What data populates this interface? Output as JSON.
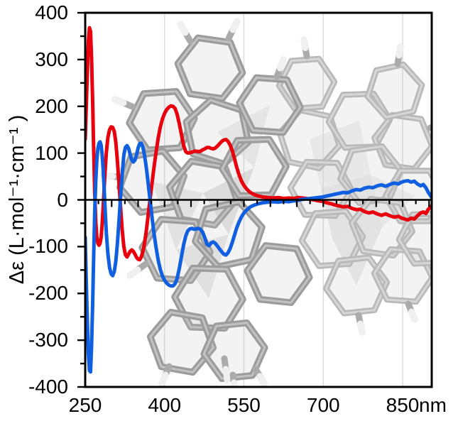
{
  "figure": {
    "description": "Circular dichroism (CD) spectra of two enantiomers with grayscale 3D stick-model molecule overlay",
    "colors": {
      "curve_red": "#e8000d",
      "curve_blue": "#0f5fe0",
      "grid": "#dcdcdc",
      "axis": "#000000",
      "molecule_dark": "#9c9c9c",
      "molecule_light": "#b9b9b9",
      "hydrogen_cap": "#f0f0f0"
    }
  },
  "chart_data": {
    "type": "line",
    "title": "",
    "ylabel": "Δε (L·mol⁻¹·cm⁻¹ )",
    "xlabel_unit": "nm",
    "xlim": [
      250,
      905
    ],
    "ylim": [
      -400,
      400
    ],
    "x_ticks": [
      250,
      400,
      550,
      700,
      850
    ],
    "x_minor_tick_step": 25,
    "y_ticks": [
      400,
      300,
      200,
      100,
      0,
      -100,
      -200,
      -300,
      -400
    ],
    "y_minor_tick_step": 50,
    "grid_vertical_at": [
      400,
      550,
      700,
      850
    ],
    "legend": "none",
    "annotations": [
      "Grayscale 3D stick model of a helicene-like polycyclic aromatic molecule drawn behind the curves inside the plot area"
    ],
    "series": [
      {
        "name": "enantiomer-red",
        "color": "#e8000d",
        "points": [
          [
            250,
            130
          ],
          [
            252,
            200
          ],
          [
            254,
            275
          ],
          [
            256,
            340
          ],
          [
            258,
            368
          ],
          [
            260,
            360
          ],
          [
            262,
            305
          ],
          [
            264,
            215
          ],
          [
            266,
            110
          ],
          [
            268,
            15
          ],
          [
            270,
            -48
          ],
          [
            272,
            -80
          ],
          [
            274,
            -93
          ],
          [
            276,
            -97
          ],
          [
            278,
            -93
          ],
          [
            280,
            -80
          ],
          [
            282,
            -54
          ],
          [
            284,
            -16
          ],
          [
            286,
            28
          ],
          [
            288,
            68
          ],
          [
            290,
            102
          ],
          [
            293,
            134
          ],
          [
            296,
            150
          ],
          [
            299,
            156
          ],
          [
            302,
            155
          ],
          [
            305,
            146
          ],
          [
            308,
            122
          ],
          [
            311,
            82
          ],
          [
            314,
            32
          ],
          [
            317,
            -18
          ],
          [
            320,
            -66
          ],
          [
            323,
            -100
          ],
          [
            326,
            -117
          ],
          [
            329,
            -122
          ],
          [
            332,
            -116
          ],
          [
            335,
            -110
          ],
          [
            338,
            -107
          ],
          [
            341,
            -110
          ],
          [
            344,
            -116
          ],
          [
            347,
            -123
          ],
          [
            350,
            -127
          ],
          [
            353,
            -128
          ],
          [
            356,
            -122
          ],
          [
            359,
            -111
          ],
          [
            362,
            -94
          ],
          [
            365,
            -70
          ],
          [
            368,
            -43
          ],
          [
            371,
            -14
          ],
          [
            374,
            14
          ],
          [
            377,
            42
          ],
          [
            380,
            70
          ],
          [
            384,
            102
          ],
          [
            388,
            132
          ],
          [
            392,
            156
          ],
          [
            396,
            173
          ],
          [
            400,
            185
          ],
          [
            404,
            193
          ],
          [
            408,
            198
          ],
          [
            412,
            201
          ],
          [
            416,
            200
          ],
          [
            420,
            195
          ],
          [
            424,
            182
          ],
          [
            428,
            162
          ],
          [
            432,
            139
          ],
          [
            436,
            116
          ],
          [
            440,
            103
          ],
          [
            444,
            100
          ],
          [
            448,
            101
          ],
          [
            452,
            102
          ],
          [
            456,
            104
          ],
          [
            460,
            104
          ],
          [
            464,
            103
          ],
          [
            468,
            104
          ],
          [
            472,
            107
          ],
          [
            476,
            109
          ],
          [
            480,
            112
          ],
          [
            484,
            112
          ],
          [
            488,
            110
          ],
          [
            492,
            109
          ],
          [
            496,
            111
          ],
          [
            500,
            115
          ],
          [
            504,
            120
          ],
          [
            508,
            125
          ],
          [
            512,
            128
          ],
          [
            516,
            129
          ],
          [
            520,
            125
          ],
          [
            524,
            117
          ],
          [
            528,
            105
          ],
          [
            532,
            89
          ],
          [
            536,
            71
          ],
          [
            540,
            56
          ],
          [
            545,
            41
          ],
          [
            550,
            31
          ],
          [
            556,
            22
          ],
          [
            562,
            16
          ],
          [
            570,
            11
          ],
          [
            578,
            8
          ],
          [
            586,
            6
          ],
          [
            595,
            5
          ],
          [
            605,
            4
          ],
          [
            615,
            5
          ],
          [
            625,
            3
          ],
          [
            635,
            4
          ],
          [
            645,
            3
          ],
          [
            652,
            5
          ],
          [
            660,
            4
          ],
          [
            668,
            3
          ],
          [
            676,
            1
          ],
          [
            683,
            0
          ],
          [
            690,
            -2
          ],
          [
            698,
            -3
          ],
          [
            706,
            -6
          ],
          [
            714,
            -8
          ],
          [
            722,
            -11
          ],
          [
            730,
            -13
          ],
          [
            738,
            -15
          ],
          [
            746,
            -14
          ],
          [
            754,
            -18
          ],
          [
            762,
            -21
          ],
          [
            770,
            -20
          ],
          [
            778,
            -25
          ],
          [
            786,
            -28
          ],
          [
            794,
            -26
          ],
          [
            802,
            -30
          ],
          [
            810,
            -33
          ],
          [
            818,
            -30
          ],
          [
            826,
            -34
          ],
          [
            834,
            -37
          ],
          [
            842,
            -35
          ],
          [
            848,
            -39
          ],
          [
            854,
            -41
          ],
          [
            860,
            -43
          ],
          [
            866,
            -39
          ],
          [
            872,
            -41
          ],
          [
            878,
            -34
          ],
          [
            884,
            -28
          ],
          [
            889,
            -26
          ],
          [
            894,
            -29
          ],
          [
            898,
            -21
          ],
          [
            902,
            -16
          ],
          [
            905,
            -12
          ]
        ]
      },
      {
        "name": "enantiomer-blue",
        "color": "#0f5fe0",
        "points": [
          [
            250,
            -80
          ],
          [
            252,
            -175
          ],
          [
            254,
            -262
          ],
          [
            256,
            -330
          ],
          [
            258,
            -365
          ],
          [
            260,
            -368
          ],
          [
            262,
            -315
          ],
          [
            264,
            -228
          ],
          [
            266,
            -122
          ],
          [
            268,
            -25
          ],
          [
            270,
            42
          ],
          [
            272,
            86
          ],
          [
            274,
            110
          ],
          [
            276,
            121
          ],
          [
            278,
            124
          ],
          [
            280,
            117
          ],
          [
            282,
            98
          ],
          [
            284,
            64
          ],
          [
            286,
            20
          ],
          [
            288,
            -28
          ],
          [
            290,
            -72
          ],
          [
            293,
            -116
          ],
          [
            296,
            -145
          ],
          [
            299,
            -158
          ],
          [
            302,
            -162
          ],
          [
            305,
            -153
          ],
          [
            308,
            -130
          ],
          [
            311,
            -92
          ],
          [
            314,
            -42
          ],
          [
            317,
            8
          ],
          [
            320,
            58
          ],
          [
            323,
            96
          ],
          [
            326,
            112
          ],
          [
            329,
            116
          ],
          [
            332,
            110
          ],
          [
            335,
            97
          ],
          [
            338,
            85
          ],
          [
            341,
            81
          ],
          [
            344,
            85
          ],
          [
            347,
            96
          ],
          [
            350,
            111
          ],
          [
            353,
            120
          ],
          [
            356,
            121
          ],
          [
            359,
            113
          ],
          [
            362,
            96
          ],
          [
            365,
            73
          ],
          [
            368,
            46
          ],
          [
            371,
            16
          ],
          [
            374,
            -14
          ],
          [
            377,
            -44
          ],
          [
            380,
            -72
          ],
          [
            384,
            -102
          ],
          [
            388,
            -129
          ],
          [
            392,
            -149
          ],
          [
            396,
            -163
          ],
          [
            400,
            -172
          ],
          [
            404,
            -178
          ],
          [
            408,
            -182
          ],
          [
            412,
            -184
          ],
          [
            416,
            -184
          ],
          [
            420,
            -179
          ],
          [
            424,
            -167
          ],
          [
            428,
            -146
          ],
          [
            432,
            -121
          ],
          [
            436,
            -96
          ],
          [
            440,
            -77
          ],
          [
            444,
            -66
          ],
          [
            448,
            -62
          ],
          [
            452,
            -61
          ],
          [
            456,
            -63
          ],
          [
            460,
            -62
          ],
          [
            464,
            -61
          ],
          [
            468,
            -63
          ],
          [
            472,
            -69
          ],
          [
            476,
            -81
          ],
          [
            480,
            -95
          ],
          [
            484,
            -98
          ],
          [
            488,
            -92
          ],
          [
            492,
            -90
          ],
          [
            496,
            -93
          ],
          [
            500,
            -99
          ],
          [
            504,
            -105
          ],
          [
            508,
            -111
          ],
          [
            512,
            -116
          ],
          [
            516,
            -118
          ],
          [
            520,
            -113
          ],
          [
            524,
            -104
          ],
          [
            528,
            -91
          ],
          [
            532,
            -76
          ],
          [
            536,
            -61
          ],
          [
            540,
            -49
          ],
          [
            545,
            -37
          ],
          [
            550,
            -28
          ],
          [
            556,
            -21
          ],
          [
            562,
            -15
          ],
          [
            570,
            -11
          ],
          [
            578,
            -8
          ],
          [
            586,
            -6
          ],
          [
            595,
            -5
          ],
          [
            605,
            -4
          ],
          [
            615,
            -5
          ],
          [
            625,
            -3
          ],
          [
            635,
            -4
          ],
          [
            645,
            -2
          ],
          [
            652,
            -1
          ],
          [
            660,
            1
          ],
          [
            668,
            2
          ],
          [
            676,
            3
          ],
          [
            683,
            4
          ],
          [
            690,
            5
          ],
          [
            698,
            6
          ],
          [
            706,
            8
          ],
          [
            714,
            10
          ],
          [
            722,
            12
          ],
          [
            730,
            14
          ],
          [
            738,
            16
          ],
          [
            746,
            15
          ],
          [
            754,
            19
          ],
          [
            762,
            22
          ],
          [
            770,
            21
          ],
          [
            778,
            25
          ],
          [
            786,
            27
          ],
          [
            794,
            26
          ],
          [
            802,
            30
          ],
          [
            810,
            32
          ],
          [
            818,
            29
          ],
          [
            826,
            33
          ],
          [
            834,
            36
          ],
          [
            842,
            34
          ],
          [
            848,
            38
          ],
          [
            854,
            40
          ],
          [
            860,
            41
          ],
          [
            866,
            38
          ],
          [
            872,
            40
          ],
          [
            878,
            34
          ],
          [
            884,
            30
          ],
          [
            889,
            33
          ],
          [
            894,
            26
          ],
          [
            898,
            17
          ],
          [
            902,
            10
          ],
          [
            905,
            5
          ]
        ]
      }
    ]
  }
}
